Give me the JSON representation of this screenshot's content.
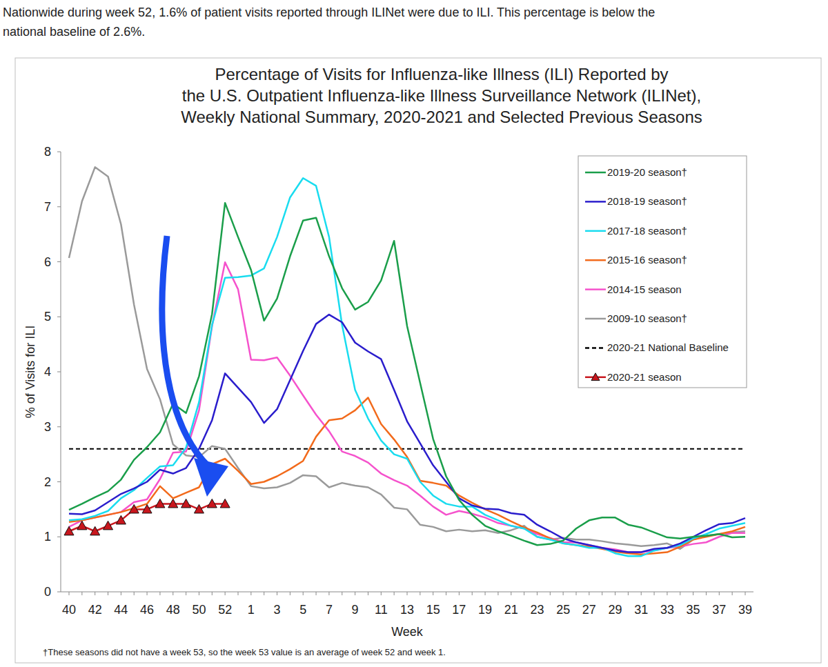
{
  "page": {
    "text": [
      "Nationwide during week 52, 1.6% of patient visits reported through ILINet were due to ILI. This percentage is below the",
      "national baseline of 2.6%."
    ]
  },
  "chart_data": {
    "type": "line",
    "title": [
      "Percentage of Visits for Influenza-like Illness (ILI) Reported by",
      "the U.S. Outpatient Influenza-like Illness Surveillance Network (ILINet),",
      "Weekly National Summary, 2020-2021 and Selected Previous Seasons"
    ],
    "x_label": "Week",
    "y_label": "% of Visits for ILI",
    "footnote": "†These seasons did not have a week 53, so the week 53 value is an average of week 52 and week 1.",
    "categories": [
      40,
      null,
      42,
      null,
      44,
      null,
      46,
      null,
      48,
      null,
      50,
      null,
      52,
      null,
      1,
      null,
      3,
      null,
      5,
      null,
      7,
      null,
      9,
      null,
      11,
      null,
      13,
      null,
      15,
      null,
      17,
      null,
      19,
      null,
      21,
      null,
      23,
      null,
      25,
      null,
      27,
      null,
      29,
      null,
      31,
      null,
      33,
      null,
      35,
      null,
      37,
      null,
      39
    ],
    "ylim": [
      0,
      8
    ],
    "yticks": [
      0,
      1,
      2,
      3,
      4,
      5,
      6,
      7,
      8
    ],
    "grid": false,
    "legend": "top-right",
    "series": [
      {
        "name": "2019-20 season†",
        "color": "#1a9e4a",
        "values": [
          1.49,
          1.6,
          1.72,
          1.83,
          2.04,
          2.4,
          2.63,
          2.9,
          3.42,
          3.25,
          3.92,
          5.05,
          7.07,
          6.45,
          5.85,
          4.93,
          5.33,
          6.1,
          6.75,
          6.8,
          6.1,
          5.52,
          5.13,
          5.27,
          5.66,
          6.38,
          4.83,
          3.8,
          2.78,
          2.1,
          1.67,
          1.4,
          1.2,
          1.1,
          1.02,
          0.93,
          0.85,
          0.87,
          0.93,
          1.15,
          1.3,
          1.35,
          1.35,
          1.22,
          1.17,
          1.08,
          0.99,
          0.97,
          1.0,
          1.02,
          1.05,
          0.99,
          1.0
        ]
      },
      {
        "name": "2018-19 season†",
        "color": "#2a1dcc",
        "values": [
          1.42,
          1.41,
          1.48,
          1.63,
          1.78,
          1.88,
          2.0,
          2.22,
          2.15,
          2.25,
          2.6,
          3.12,
          3.97,
          3.71,
          3.45,
          3.07,
          3.32,
          3.85,
          4.38,
          4.87,
          5.04,
          4.9,
          4.53,
          4.37,
          4.23,
          3.67,
          3.1,
          2.7,
          2.3,
          2.0,
          1.7,
          1.57,
          1.51,
          1.5,
          1.43,
          1.4,
          1.22,
          1.1,
          0.97,
          0.9,
          0.85,
          0.8,
          0.75,
          0.72,
          0.72,
          0.78,
          0.8,
          0.88,
          1.0,
          1.12,
          1.23,
          1.25,
          1.34
        ]
      },
      {
        "name": "2017-18 season†",
        "color": "#19dcef",
        "values": [
          1.3,
          1.32,
          1.38,
          1.47,
          1.7,
          1.85,
          2.07,
          2.28,
          2.3,
          2.62,
          3.45,
          4.85,
          5.71,
          5.72,
          5.75,
          5.88,
          6.45,
          7.17,
          7.52,
          7.38,
          6.45,
          4.85,
          3.67,
          3.15,
          2.75,
          2.5,
          2.42,
          2.0,
          1.75,
          1.6,
          1.55,
          1.55,
          1.4,
          1.3,
          1.2,
          1.15,
          1.0,
          0.95,
          0.88,
          0.85,
          0.8,
          0.8,
          0.7,
          0.65,
          0.65,
          0.75,
          0.8,
          0.85,
          0.97,
          1.05,
          1.15,
          1.2,
          1.25
        ]
      },
      {
        "name": "2015-16 season†",
        "color": "#f26a1b",
        "values": [
          1.27,
          1.3,
          1.35,
          1.4,
          1.45,
          1.52,
          1.6,
          1.92,
          1.7,
          1.8,
          1.9,
          2.32,
          2.42,
          2.2,
          1.96,
          2.0,
          2.1,
          2.23,
          2.38,
          2.82,
          3.12,
          3.15,
          3.3,
          3.53,
          3.05,
          2.77,
          2.45,
          2.02,
          1.98,
          1.93,
          1.75,
          1.62,
          1.5,
          1.4,
          1.28,
          1.17,
          1.08,
          0.97,
          0.88,
          0.85,
          0.82,
          0.78,
          0.73,
          0.7,
          0.68,
          0.7,
          0.72,
          0.82,
          0.95,
          1.0,
          1.05,
          1.1,
          1.18
        ]
      },
      {
        "name": "2014-15 season",
        "color": "#f552cc",
        "values": [
          1.18,
          1.3,
          1.35,
          1.4,
          1.45,
          1.63,
          1.68,
          2.05,
          2.53,
          2.55,
          3.3,
          4.83,
          5.99,
          5.5,
          4.22,
          4.21,
          4.26,
          3.93,
          3.57,
          3.22,
          2.92,
          2.55,
          2.47,
          2.35,
          2.15,
          2.03,
          1.93,
          1.75,
          1.55,
          1.4,
          1.47,
          1.42,
          1.35,
          1.25,
          1.2,
          1.15,
          1.05,
          0.98,
          0.9,
          0.9,
          0.85,
          0.8,
          0.77,
          0.72,
          0.72,
          0.75,
          0.8,
          0.82,
          0.87,
          0.9,
          1.0,
          1.07,
          1.07
        ]
      },
      {
        "name": "2009-10 season†",
        "color": "#9a9a9a",
        "values": [
          6.07,
          7.1,
          7.72,
          7.55,
          6.68,
          5.22,
          4.05,
          3.5,
          2.68,
          2.48,
          2.45,
          2.65,
          2.6,
          2.25,
          1.92,
          1.88,
          1.9,
          1.98,
          2.12,
          2.1,
          1.9,
          1.98,
          1.93,
          1.9,
          1.77,
          1.53,
          1.5,
          1.22,
          1.18,
          1.1,
          1.13,
          1.1,
          1.12,
          1.07,
          1.12,
          1.2,
          1.0,
          0.95,
          0.98,
          0.95,
          0.95,
          0.92,
          0.88,
          0.86,
          0.83,
          0.85,
          0.88,
          0.78,
          0.95,
          1.02,
          1.05,
          1.08,
          1.1
        ]
      },
      {
        "name": "2020-21 National Baseline",
        "color": "#000000",
        "line_style": "dashed",
        "values": [
          2.6,
          2.6,
          2.6,
          2.6,
          2.6,
          2.6,
          2.6,
          2.6,
          2.6,
          2.6,
          2.6,
          2.6,
          2.6,
          2.6,
          2.6,
          2.6,
          2.6,
          2.6,
          2.6,
          2.6,
          2.6,
          2.6,
          2.6,
          2.6,
          2.6,
          2.6,
          2.6,
          2.6,
          2.6,
          2.6,
          2.6,
          2.6,
          2.6,
          2.6,
          2.6,
          2.6,
          2.6,
          2.6,
          2.6,
          2.6,
          2.6,
          2.6,
          2.6,
          2.6,
          2.6,
          2.6,
          2.6,
          2.6,
          2.6,
          2.6,
          2.6,
          2.6,
          2.6
        ]
      },
      {
        "name": "2020-21 season",
        "color": "#c8161d",
        "marker": "triangle",
        "values": [
          1.1,
          1.2,
          1.1,
          1.2,
          1.3,
          1.5,
          1.5,
          1.6,
          1.6,
          1.6,
          1.5,
          1.6,
          1.6,
          null,
          null,
          null,
          null,
          null,
          null,
          null,
          null,
          null,
          null,
          null,
          null,
          null,
          null,
          null,
          null,
          null,
          null,
          null,
          null,
          null,
          null,
          null,
          null,
          null,
          null,
          null,
          null,
          null,
          null,
          null,
          null,
          null,
          null,
          null,
          null,
          null,
          null,
          null,
          null
        ]
      }
    ]
  }
}
